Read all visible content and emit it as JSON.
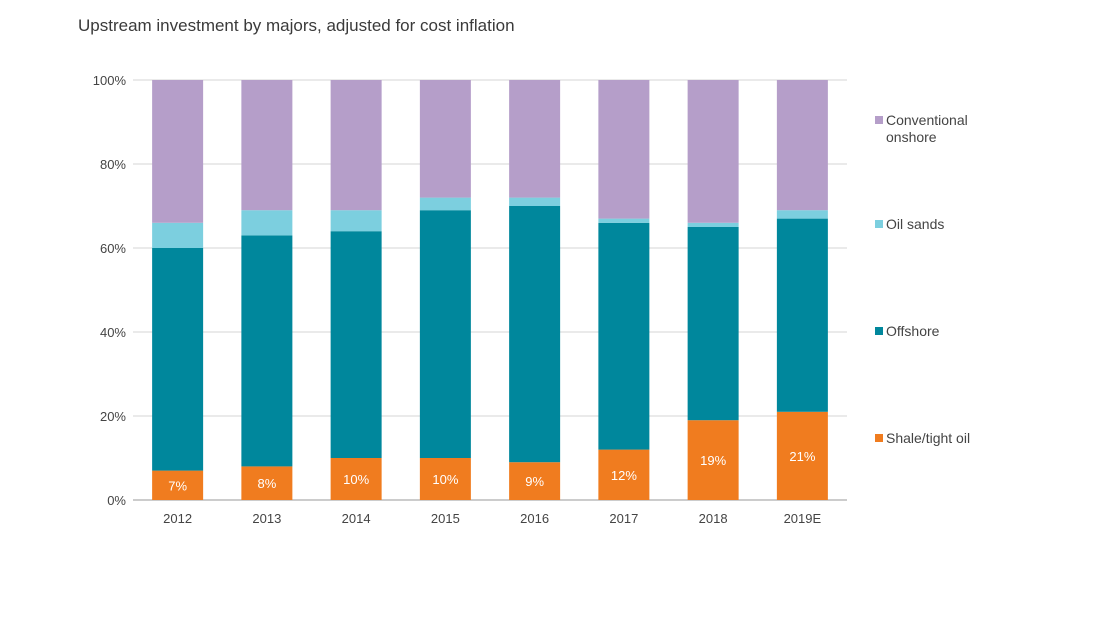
{
  "chart_data": {
    "type": "bar",
    "stacked": true,
    "title": "Upstream investment by majors, adjusted for cost inflation",
    "categories": [
      "2012",
      "2013",
      "2014",
      "2015",
      "2016",
      "2017",
      "2018",
      "2019E"
    ],
    "y_ticks": [
      "0%",
      "20%",
      "40%",
      "60%",
      "80%",
      "100%"
    ],
    "ylim": [
      0,
      100
    ],
    "series": [
      {
        "name": "Shale/tight oil",
        "color": "#f07c1f",
        "values": [
          7,
          8,
          10,
          10,
          9,
          12,
          19,
          21
        ],
        "labels": [
          "7%",
          "8%",
          "10%",
          "10%",
          "9%",
          "12%",
          "19%",
          "21%"
        ]
      },
      {
        "name": "Offshore",
        "color": "#00879c",
        "values": [
          53,
          55,
          54,
          59,
          61,
          54,
          46,
          46
        ]
      },
      {
        "name": "Oil sands",
        "color": "#7ccfdf",
        "values": [
          6,
          6,
          5,
          3,
          2,
          1,
          1,
          2
        ]
      },
      {
        "name": "Conventional onshore",
        "color": "#b59ec9",
        "values": [
          34,
          31,
          31,
          28,
          28,
          33,
          34,
          31
        ]
      }
    ],
    "legend": [
      {
        "label_lines": [
          "Conventional",
          "onshore"
        ],
        "color": "#b59ec9"
      },
      {
        "label_lines": [
          "Oil sands"
        ],
        "color": "#7ccfdf"
      },
      {
        "label_lines": [
          "Offshore"
        ],
        "color": "#00879c"
      },
      {
        "label_lines": [
          "Shale/tight oil"
        ],
        "color": "#f07c1f"
      }
    ],
    "legend_position": "right",
    "grid": true
  }
}
